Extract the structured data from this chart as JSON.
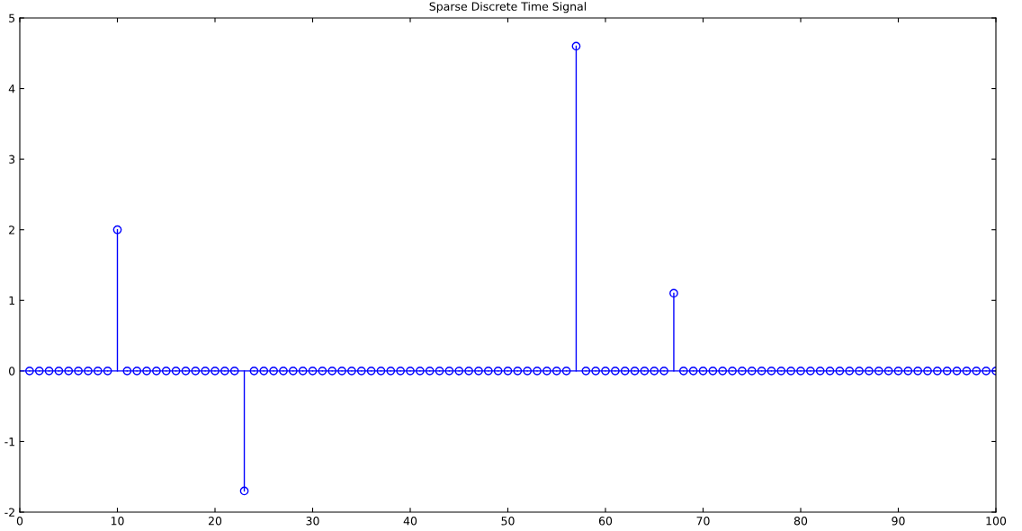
{
  "chart_data": {
    "type": "lollipop",
    "title": "Sparse Discrete Time Signal",
    "x": [
      1,
      2,
      3,
      4,
      5,
      6,
      7,
      8,
      9,
      10,
      11,
      12,
      13,
      14,
      15,
      16,
      17,
      18,
      19,
      20,
      21,
      22,
      23,
      24,
      25,
      26,
      27,
      28,
      29,
      30,
      31,
      32,
      33,
      34,
      35,
      36,
      37,
      38,
      39,
      40,
      41,
      42,
      43,
      44,
      45,
      46,
      47,
      48,
      49,
      50,
      51,
      52,
      53,
      54,
      55,
      56,
      57,
      58,
      59,
      60,
      61,
      62,
      63,
      64,
      65,
      66,
      67,
      68,
      69,
      70,
      71,
      72,
      73,
      74,
      75,
      76,
      77,
      78,
      79,
      80,
      81,
      82,
      83,
      84,
      85,
      86,
      87,
      88,
      89,
      90,
      91,
      92,
      93,
      94,
      95,
      96,
      97,
      98,
      99,
      100
    ],
    "values": [
      0,
      0,
      0,
      0,
      0,
      0,
      0,
      0,
      0,
      2,
      0,
      0,
      0,
      0,
      0,
      0,
      0,
      0,
      0,
      0,
      0,
      0,
      -1.7,
      0,
      0,
      0,
      0,
      0,
      0,
      0,
      0,
      0,
      0,
      0,
      0,
      0,
      0,
      0,
      0,
      0,
      0,
      0,
      0,
      0,
      0,
      0,
      0,
      0,
      0,
      0,
      0,
      0,
      0,
      0,
      0,
      0,
      4.6,
      0,
      0,
      0,
      0,
      0,
      0,
      0,
      0,
      0,
      1.1,
      0,
      0,
      0,
      0,
      0,
      0,
      0,
      0,
      0,
      0,
      0,
      0,
      0,
      0,
      0,
      0,
      0,
      0,
      0,
      0,
      0,
      0,
      0,
      0,
      0,
      0,
      0,
      0,
      0,
      0,
      0,
      0,
      0
    ],
    "color": "#0000ff",
    "ref_lines": [
      {
        "axis": "y",
        "value": 0,
        "color": "#0000ff"
      }
    ],
    "marker": "circle",
    "grid": false,
    "legend": false,
    "xlim": [
      0,
      100
    ],
    "xticks": [
      0,
      10,
      20,
      30,
      40,
      50,
      60,
      70,
      80,
      90,
      100
    ],
    "ylim": [
      -2,
      5
    ],
    "yticks": [
      -2,
      -1,
      0,
      1,
      2,
      3,
      4,
      5
    ]
  }
}
